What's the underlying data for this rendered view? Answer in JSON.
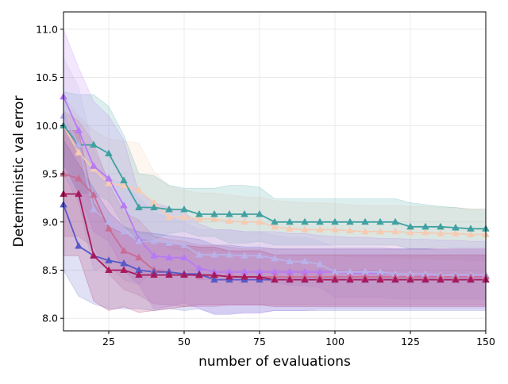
{
  "chart_data": {
    "type": "line",
    "title": "",
    "xlabel": "number of evaluations",
    "ylabel": "Deterministic val error",
    "xlim": [
      10,
      150
    ],
    "ylim": [
      7.87,
      11.18
    ],
    "xticks": [
      25,
      50,
      75,
      100,
      125,
      150
    ],
    "yticks": [
      8.0,
      8.5,
      9.0,
      9.5,
      10.0,
      10.5,
      11.0
    ],
    "xtick_labels": [
      "25",
      "50",
      "75",
      "100",
      "125",
      "150"
    ],
    "ytick_labels": [
      "8.0",
      "8.5",
      "9.0",
      "9.5",
      "10.0",
      "10.5",
      "11.0"
    ],
    "grid": true,
    "legend": "none",
    "marker": "triangle",
    "x": [
      10,
      15,
      20,
      25,
      30,
      35,
      40,
      45,
      50,
      55,
      60,
      65,
      70,
      75,
      80,
      85,
      90,
      95,
      100,
      105,
      110,
      115,
      120,
      125,
      130,
      135,
      140,
      145,
      150
    ],
    "series": [
      {
        "color": "#f5cbb3",
        "values": [
          10.0,
          9.72,
          9.55,
          9.4,
          9.38,
          9.33,
          9.2,
          9.05,
          9.05,
          9.03,
          9.03,
          9.01,
          9.0,
          9.0,
          8.95,
          8.93,
          8.92,
          8.92,
          8.92,
          8.91,
          8.9,
          8.9,
          8.9,
          8.89,
          8.89,
          8.88,
          8.88,
          8.87,
          8.87
        ],
        "upper": [
          10.3,
          10.1,
          9.95,
          9.86,
          9.84,
          9.82,
          9.52,
          9.38,
          9.33,
          9.3,
          9.3,
          9.28,
          9.26,
          9.26,
          9.22,
          9.21,
          9.2,
          9.2,
          9.19,
          9.18,
          9.17,
          9.17,
          9.17,
          9.16,
          9.16,
          9.15,
          9.15,
          9.14,
          9.14
        ],
        "lower": [
          9.7,
          9.35,
          9.15,
          8.95,
          8.92,
          8.88,
          8.85,
          8.72,
          8.7,
          8.7,
          8.7,
          8.7,
          8.7,
          8.7,
          8.68,
          8.66,
          8.65,
          8.65,
          8.65,
          8.64,
          8.63,
          8.63,
          8.63,
          8.62,
          8.62,
          8.61,
          8.61,
          8.6,
          8.6
        ]
      },
      {
        "color": "#40a1a1",
        "values": [
          10.0,
          9.8,
          9.8,
          9.71,
          9.43,
          9.15,
          9.15,
          9.13,
          9.13,
          9.08,
          9.08,
          9.08,
          9.08,
          9.08,
          9.0,
          9.0,
          9.0,
          9.0,
          9.0,
          9.0,
          9.0,
          9.0,
          9.0,
          8.95,
          8.95,
          8.95,
          8.94,
          8.93,
          8.93
        ],
        "upper": [
          10.35,
          10.32,
          10.32,
          10.2,
          9.9,
          9.5,
          9.48,
          9.38,
          9.35,
          9.35,
          9.35,
          9.38,
          9.38,
          9.36,
          9.24,
          9.24,
          9.24,
          9.24,
          9.24,
          9.24,
          9.24,
          9.24,
          9.24,
          9.2,
          9.18,
          9.16,
          9.15,
          9.13,
          9.13
        ],
        "lower": [
          9.6,
          9.3,
          9.3,
          9.22,
          8.96,
          8.8,
          8.82,
          8.88,
          8.9,
          8.85,
          8.85,
          8.78,
          8.78,
          8.8,
          8.76,
          8.76,
          8.76,
          8.76,
          8.76,
          8.76,
          8.76,
          8.76,
          8.76,
          8.72,
          8.72,
          8.74,
          8.73,
          8.73,
          8.73
        ]
      },
      {
        "color": "#b879f6",
        "values": [
          10.3,
          9.95,
          9.58,
          9.45,
          9.17,
          8.82,
          8.65,
          8.63,
          8.63,
          8.52,
          8.48,
          8.48,
          8.48,
          8.48,
          8.48,
          8.48,
          8.48,
          8.48,
          8.48,
          8.47,
          8.47,
          8.47,
          8.46,
          8.46,
          8.45,
          8.45,
          8.45,
          8.44,
          8.44
        ],
        "upper": [
          11.0,
          10.6,
          10.25,
          10.1,
          9.85,
          9.3,
          9.2,
          9.15,
          9.1,
          8.98,
          8.92,
          8.92,
          8.9,
          8.9,
          8.9,
          8.88,
          8.88,
          8.86,
          8.85,
          8.84,
          8.84,
          8.83,
          8.83,
          8.82,
          8.82,
          8.81,
          8.81,
          8.8,
          8.8
        ],
        "lower": [
          9.6,
          9.3,
          8.9,
          8.8,
          8.5,
          8.35,
          8.1,
          8.12,
          8.16,
          8.1,
          8.05,
          8.05,
          8.05,
          8.05,
          8.08,
          8.08,
          8.08,
          8.1,
          8.1,
          8.1,
          8.1,
          8.1,
          8.1,
          8.1,
          8.1,
          8.1,
          8.1,
          8.1,
          8.1
        ]
      },
      {
        "color": "#b8b2e8",
        "values": [
          10.1,
          9.8,
          9.13,
          9.0,
          8.9,
          8.8,
          8.8,
          8.78,
          8.76,
          8.66,
          8.66,
          8.66,
          8.65,
          8.65,
          8.62,
          8.59,
          8.59,
          8.56,
          8.48,
          8.48,
          8.48,
          8.48,
          8.46,
          8.46,
          8.46,
          8.45,
          8.45,
          8.45,
          8.45
        ],
        "upper": [
          10.7,
          10.4,
          9.75,
          9.45,
          9.4,
          9.25,
          9.1,
          9.05,
          9.0,
          8.92,
          8.92,
          8.92,
          8.9,
          8.9,
          8.86,
          8.84,
          8.84,
          8.8,
          8.74,
          8.74,
          8.74,
          8.74,
          8.72,
          8.72,
          8.72,
          8.7,
          8.7,
          8.7,
          8.7
        ],
        "lower": [
          9.5,
          9.2,
          8.5,
          8.55,
          8.4,
          8.35,
          8.5,
          8.51,
          8.52,
          8.4,
          8.4,
          8.4,
          8.4,
          8.4,
          8.38,
          8.34,
          8.34,
          8.32,
          8.22,
          8.22,
          8.22,
          8.22,
          8.2,
          8.2,
          8.2,
          8.2,
          8.2,
          8.2,
          8.2
        ]
      },
      {
        "color": "#c96c93",
        "values": [
          9.5,
          9.45,
          9.28,
          8.93,
          8.7,
          8.63,
          8.5,
          8.48,
          8.46,
          8.44,
          8.44,
          8.44,
          8.43,
          8.43,
          8.43,
          8.43,
          8.43,
          8.43,
          8.43,
          8.43,
          8.43,
          8.43,
          8.43,
          8.43,
          8.43,
          8.43,
          8.43,
          8.43,
          8.43
        ],
        "upper": [
          10.15,
          10.05,
          9.82,
          9.4,
          9.1,
          9.02,
          8.85,
          8.82,
          8.8,
          8.76,
          8.76,
          8.74,
          8.72,
          8.72,
          8.72,
          8.72,
          8.72,
          8.72,
          8.72,
          8.72,
          8.72,
          8.72,
          8.72,
          8.72,
          8.72,
          8.72,
          8.72,
          8.72,
          8.72
        ],
        "lower": [
          8.85,
          8.85,
          8.74,
          8.46,
          8.3,
          8.24,
          8.15,
          8.14,
          8.12,
          8.12,
          8.12,
          8.14,
          8.14,
          8.14,
          8.14,
          8.14,
          8.14,
          8.14,
          8.14,
          8.14,
          8.14,
          8.14,
          8.14,
          8.14,
          8.14,
          8.14,
          8.14,
          8.14,
          8.14
        ]
      },
      {
        "color": "#5659c9",
        "values": [
          9.18,
          8.75,
          8.65,
          8.6,
          8.57,
          8.5,
          8.48,
          8.48,
          8.46,
          8.46,
          8.4,
          8.4,
          8.4,
          8.4,
          8.4,
          8.4,
          8.4,
          8.4,
          8.4,
          8.4,
          8.4,
          8.4,
          8.4,
          8.4,
          8.4,
          8.4,
          8.4,
          8.4,
          8.4
        ],
        "upper": [
          9.85,
          9.6,
          9.35,
          9.1,
          8.95,
          8.9,
          8.88,
          8.86,
          8.84,
          8.82,
          8.76,
          8.76,
          8.74,
          8.74,
          8.72,
          8.72,
          8.72,
          8.72,
          8.72,
          8.72,
          8.72,
          8.72,
          8.72,
          8.72,
          8.72,
          8.72,
          8.72,
          8.72,
          8.72
        ],
        "lower": [
          8.5,
          8.23,
          8.15,
          8.1,
          8.1,
          8.1,
          8.08,
          8.1,
          8.08,
          8.1,
          8.04,
          8.04,
          8.06,
          8.06,
          8.08,
          8.08,
          8.08,
          8.08,
          8.08,
          8.08,
          8.08,
          8.08,
          8.08,
          8.08,
          8.08,
          8.08,
          8.08,
          8.08,
          8.08
        ]
      },
      {
        "color": "#a8195b",
        "values": [
          9.29,
          9.29,
          8.65,
          8.5,
          8.5,
          8.45,
          8.45,
          8.45,
          8.45,
          8.45,
          8.45,
          8.43,
          8.43,
          8.43,
          8.4,
          8.4,
          8.4,
          8.4,
          8.4,
          8.4,
          8.4,
          8.4,
          8.4,
          8.4,
          8.4,
          8.4,
          8.4,
          8.4,
          8.4
        ],
        "upper": [
          9.95,
          9.95,
          9.2,
          8.95,
          8.88,
          8.82,
          8.8,
          8.78,
          8.76,
          8.74,
          8.74,
          8.7,
          8.7,
          8.7,
          8.66,
          8.66,
          8.66,
          8.66,
          8.66,
          8.66,
          8.66,
          8.66,
          8.66,
          8.66,
          8.66,
          8.66,
          8.66,
          8.66,
          8.66
        ],
        "lower": [
          8.65,
          8.65,
          8.18,
          8.08,
          8.12,
          8.06,
          8.08,
          8.1,
          8.12,
          8.14,
          8.14,
          8.14,
          8.14,
          8.14,
          8.12,
          8.12,
          8.12,
          8.12,
          8.12,
          8.12,
          8.12,
          8.12,
          8.12,
          8.12,
          8.12,
          8.12,
          8.12,
          8.12,
          8.12
        ]
      }
    ]
  }
}
